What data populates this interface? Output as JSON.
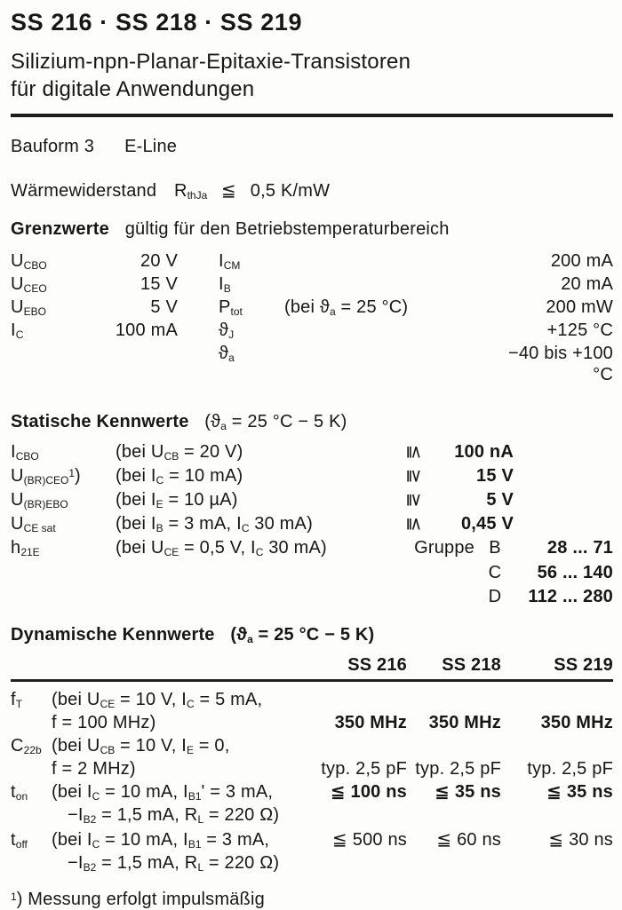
{
  "doc": {
    "title": "SS 216 · SS 218 · SS 219",
    "subtitle_line1": "Silizium-npn-Planar-Epitaxie-Transistoren",
    "subtitle_line2": "für digitale Anwendungen",
    "bauform": {
      "label": "Bauform 3",
      "value": "E-Line"
    },
    "thermal": {
      "label": "Wärmewiderstand",
      "symbol": "R_{thJa}",
      "relation": "≦",
      "value": "0,5 K/mW"
    },
    "limits": {
      "heading_bold": "Grenzwerte",
      "heading_rest": "gültig für den Betriebstemperaturbereich",
      "rows": [
        {
          "sym1": "U_{CBO}",
          "val1": "20 V",
          "sym2": "I_{CM}",
          "cond": "",
          "val2": "200 mA"
        },
        {
          "sym1": "U_{CEO}",
          "val1": "15 V",
          "sym2": "I_{B}",
          "cond": "",
          "val2": "20 mA"
        },
        {
          "sym1": "U_{EBO}",
          "val1": "5 V",
          "sym2": "P_{tot}",
          "cond": "(bei ϑ_{a} = 25 °C)",
          "val2": "200 mW"
        },
        {
          "sym1": "I_{C}",
          "val1": "100 mA",
          "sym2": "ϑ_{J}",
          "cond": "",
          "val2": "+125 °C"
        },
        {
          "sym1": "",
          "val1": "",
          "sym2": "ϑ_{a}",
          "cond": "",
          "val2": "−40 bis +100 °C"
        }
      ]
    },
    "statics": {
      "heading": "Statische Kennwerte",
      "heading_cond": "(ϑ_{a} = 25 °C − 5 K)",
      "rows": [
        {
          "sym": "I_{CBO}",
          "cond": "(bei U_{CB} = 20 V)",
          "rel": "≦",
          "val": "100 nA"
        },
        {
          "sym": "U_{(BR)CEO}^{1})",
          "cond": "(bei I_{C} = 10 mA)",
          "rel": "≧",
          "val": "15 V"
        },
        {
          "sym": "U_{(BR)EBO}",
          "cond": "(bei I_{E} = 10 µA)",
          "rel": "≧",
          "val": "5 V"
        },
        {
          "sym": "U_{CE sat}",
          "cond": "(bei I_{B} = 3 mA, I_{C} 30 mA)",
          "rel": "≦",
          "val": "0,45 V"
        },
        {
          "sym": "h_{21E}",
          "cond": "(bei U_{CE} = 0,5 V, I_{C} 30 mA)",
          "rel": "",
          "val": ""
        }
      ],
      "gruppe_label": "Gruppe",
      "gruppe_rows": [
        {
          "letter": "B",
          "range": "28 ...  71"
        },
        {
          "letter": "C",
          "range": "56 ... 140"
        },
        {
          "letter": "D",
          "range": "112 ... 280"
        }
      ]
    },
    "dynamics": {
      "heading": "Dynamische Kennwerte",
      "heading_cond": "(ϑ_{a} = 25 °C − 5 K)",
      "columns": [
        "SS 216",
        "SS 218",
        "SS 219"
      ],
      "rows": [
        {
          "sym": "f_{T}",
          "cond1": "(bei U_{CE} = 10 V, I_{C} = 5 mA,",
          "cond2": "f = 100 MHz)",
          "v1": "350 MHz",
          "v2": "350 MHz",
          "v3": "350 MHz"
        },
        {
          "sym": "C_{22b}",
          "cond1": "(bei U_{CB} = 10 V, I_{E} = 0,",
          "cond2": "f = 2 MHz)",
          "v1": "typ. 2,5 pF",
          "v2": "typ. 2,5 pF",
          "v3": "typ. 2,5 pF"
        },
        {
          "sym": "t_{on}",
          "cond1": "(bei I_{C} = 10 mA, I_{B1}' = 3 mA,",
          "cond2": "−I_{B2} = 1,5 mA, R_{L} = 220 Ω)",
          "v1": "≦ 100 ns",
          "v2": "≦ 35 ns",
          "v3": "≦ 35 ns"
        },
        {
          "sym": "t_{off}",
          "cond1": "(bei I_{C} = 10 mA, I_{B1} = 3 mA,",
          "cond2": "−I_{B2} = 1,5 mA, R_{L} = 220 Ω)",
          "v1": "≦ 500 ns",
          "v2": "≦ 60 ns",
          "v3": "≦ 30 ns"
        }
      ]
    },
    "footnote": "^{1}) Messung erfolgt impulsmäßig"
  }
}
